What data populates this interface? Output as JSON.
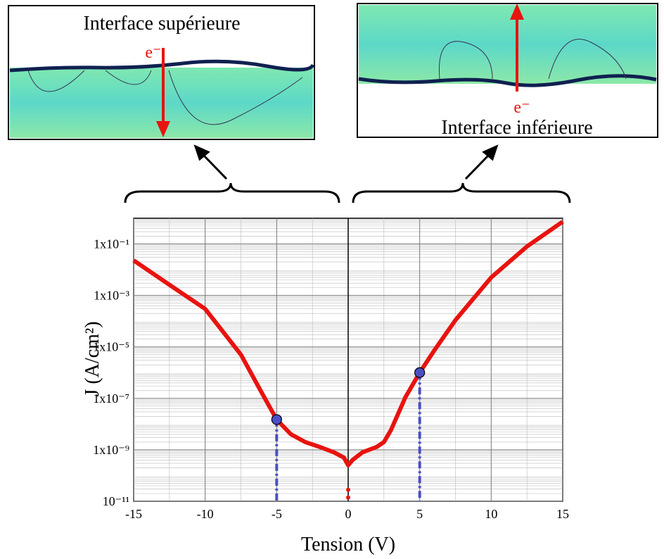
{
  "chart_data": {
    "type": "line",
    "log_y": true,
    "grid": true,
    "minor_grid": true,
    "xlabel": "Tension (V)",
    "ylabel": "J (A/cm²)",
    "xlim": [
      -15,
      15
    ],
    "xticks": [
      -15,
      -10,
      -5,
      0,
      5,
      10,
      15
    ],
    "ylim": [
      1e-11,
      1
    ],
    "yticks": [
      {
        "value": 1e-11,
        "label": "10⁻¹¹"
      },
      {
        "value": 1e-09,
        "label": "1x10⁻⁹"
      },
      {
        "value": 1e-07,
        "label": "1x10⁻⁷"
      },
      {
        "value": 1e-05,
        "label": "1x10⁻⁵"
      },
      {
        "value": 0.001,
        "label": "1x10⁻³"
      },
      {
        "value": 0.1,
        "label": "1x10⁻¹"
      }
    ],
    "series": [
      {
        "style": "line",
        "color": "#e8130f",
        "x": [
          -15,
          -12.5,
          -10,
          -7.5,
          -6,
          -5,
          -4,
          -3,
          -2,
          -1,
          -0.3,
          0,
          0.3,
          1,
          2,
          2.5,
          3,
          4,
          5,
          6,
          7.5,
          10,
          12.5,
          15
        ],
        "values": [
          0.023,
          0.0026,
          0.0003,
          5e-06,
          1.5e-07,
          1.5e-08,
          4e-09,
          2e-09,
          1.3e-09,
          8e-10,
          5e-10,
          2.5e-10,
          4e-10,
          8e-10,
          1.3e-09,
          2e-09,
          6e-09,
          1.1e-07,
          1e-06,
          7e-06,
          0.00011,
          0.005,
          0.08,
          0.74
        ]
      },
      {
        "style": "points",
        "color": "#e8130f",
        "x": [
          0,
          0
        ],
        "values": [
          2.8e-11,
          1.4e-11
        ]
      },
      {
        "style": "markers",
        "color": "#4a4fc4",
        "x": [
          -5,
          5
        ],
        "values": [
          1.5e-08,
          1e-06
        ]
      }
    ],
    "annotations": {
      "top_left": "Interface supérieure",
      "top_right": "Interface inférieure",
      "electron_left": "e⁻",
      "electron_right": "e⁻"
    }
  }
}
